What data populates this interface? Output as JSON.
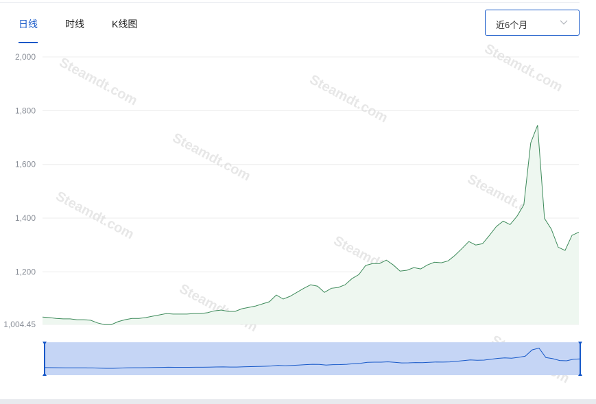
{
  "tabs": [
    {
      "label": "日线",
      "active": true
    },
    {
      "label": "时线",
      "active": false
    },
    {
      "label": "K线图",
      "active": false
    }
  ],
  "range_select": {
    "value": "近6个月",
    "icon": "chevron-down-icon"
  },
  "watermark": "Steamdt.com",
  "colors": {
    "accent": "#1658c8",
    "line": "#3d8a5a",
    "area": "#eef7f0",
    "navigator": "#c5d5f5"
  },
  "chart_data": {
    "type": "area",
    "title": "",
    "xlabel": "",
    "ylabel": "",
    "ylim": [
      1004.45,
      2000
    ],
    "y_ticks": [
      "2,000",
      "1,800",
      "1,600",
      "1,400",
      "1,200",
      "1,004.45"
    ],
    "y_tick_values": [
      2000,
      1800,
      1600,
      1400,
      1200,
      1004.45
    ],
    "grid": true,
    "navigator": true,
    "values": [
      1032,
      1030,
      1027,
      1025,
      1025,
      1022,
      1022,
      1020,
      1010,
      1004,
      1004,
      1015,
      1022,
      1027,
      1027,
      1030,
      1035,
      1040,
      1045,
      1043,
      1043,
      1043,
      1045,
      1045,
      1048,
      1055,
      1058,
      1053,
      1053,
      1063,
      1068,
      1073,
      1081,
      1089,
      1114,
      1099,
      1109,
      1124,
      1139,
      1152,
      1147,
      1124,
      1139,
      1142,
      1152,
      1175,
      1190,
      1224,
      1231,
      1231,
      1244,
      1226,
      1203,
      1206,
      1216,
      1211,
      1226,
      1236,
      1234,
      1241,
      1262,
      1287,
      1313,
      1300,
      1305,
      1336,
      1369,
      1389,
      1376,
      1407,
      1450,
      1680,
      1746,
      1399,
      1359,
      1292,
      1280,
      1336,
      1348
    ]
  }
}
